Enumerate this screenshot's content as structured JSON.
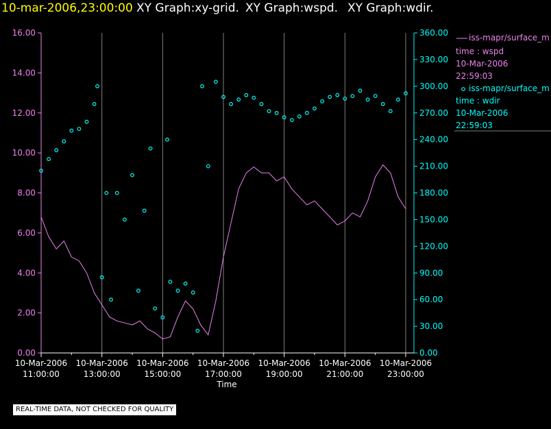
{
  "header": {
    "timestamp": "10-mar-2006,23:00:00",
    "graph1": "XY Graph:xy-grid.",
    "graph2": "XY Graph:wspd.",
    "graph3": "XY Graph:wdir."
  },
  "legend": {
    "wspd": {
      "name": "iss-mapr/surface_m",
      "line2": "time : wspd",
      "line3": "10-Mar-2006",
      "line4": "22:59:03"
    },
    "wdir": {
      "name": "iss-mapr/surface_m",
      "line2": "time : wdir",
      "line3": "10-Mar-2006",
      "line4": "22:59:03"
    }
  },
  "footer": {
    "quality_note": "REAL-TIME DATA, NOT CHECKED FOR QUALITY"
  },
  "colors": {
    "title": "#ffff00",
    "text": "#ffffff",
    "wspd": "#ee82ee",
    "wdir": "#00ffff",
    "grid": "#808080",
    "background": "#000000"
  },
  "chart_data": {
    "type": "line",
    "xlabel": "Time",
    "x_ticks": [
      {
        "date": "10-Mar-2006",
        "time": "11:00:00",
        "hour": 11
      },
      {
        "date": "10-Mar-2006",
        "time": "13:00:00",
        "hour": 13
      },
      {
        "date": "10-Mar-2006",
        "time": "15:00:00",
        "hour": 15
      },
      {
        "date": "10-Mar-2006",
        "time": "17:00:00",
        "hour": 17
      },
      {
        "date": "10-Mar-2006",
        "time": "19:00:00",
        "hour": 19
      },
      {
        "date": "10-Mar-2006",
        "time": "21:00:00",
        "hour": 21
      },
      {
        "date": "10-Mar-2006",
        "time": "23:00:00",
        "hour": 23
      }
    ],
    "xlim_hours": [
      11,
      23
    ],
    "y_left": {
      "ticks": [
        "0.00",
        "2.00",
        "4.00",
        "6.00",
        "8.00",
        "10.00",
        "12.00",
        "14.00",
        "16.00"
      ],
      "lim": [
        0,
        16
      ]
    },
    "y_right": {
      "ticks": [
        "0.00",
        "30.00",
        "60.00",
        "90.00",
        "120.00",
        "150.00",
        "180.00",
        "210.00",
        "240.00",
        "270.00",
        "300.00",
        "330.00",
        "360.00"
      ],
      "lim": [
        0,
        360
      ]
    },
    "grid": "vertical",
    "series": [
      {
        "key": "wspd",
        "style": "line",
        "axis": "left",
        "points": [
          [
            11.0,
            6.8
          ],
          [
            11.25,
            5.8
          ],
          [
            11.5,
            5.2
          ],
          [
            11.75,
            5.6
          ],
          [
            12.0,
            4.8
          ],
          [
            12.25,
            4.6
          ],
          [
            12.5,
            4.0
          ],
          [
            12.75,
            3.0
          ],
          [
            13.0,
            2.4
          ],
          [
            13.25,
            1.8
          ],
          [
            13.5,
            1.6
          ],
          [
            13.75,
            1.5
          ],
          [
            14.0,
            1.4
          ],
          [
            14.25,
            1.6
          ],
          [
            14.5,
            1.2
          ],
          [
            14.75,
            1.0
          ],
          [
            15.0,
            0.7
          ],
          [
            15.25,
            0.8
          ],
          [
            15.5,
            1.8
          ],
          [
            15.75,
            2.6
          ],
          [
            16.0,
            2.2
          ],
          [
            16.25,
            1.4
          ],
          [
            16.5,
            0.9
          ],
          [
            16.75,
            2.6
          ],
          [
            17.0,
            4.8
          ],
          [
            17.25,
            6.5
          ],
          [
            17.5,
            8.2
          ],
          [
            17.75,
            9.0
          ],
          [
            18.0,
            9.3
          ],
          [
            18.25,
            9.0
          ],
          [
            18.5,
            9.0
          ],
          [
            18.75,
            8.6
          ],
          [
            19.0,
            8.8
          ],
          [
            19.25,
            8.2
          ],
          [
            19.5,
            7.8
          ],
          [
            19.75,
            7.4
          ],
          [
            20.0,
            7.6
          ],
          [
            20.25,
            7.2
          ],
          [
            20.5,
            6.8
          ],
          [
            20.75,
            6.4
          ],
          [
            21.0,
            6.6
          ],
          [
            21.25,
            7.0
          ],
          [
            21.5,
            6.8
          ],
          [
            21.75,
            7.6
          ],
          [
            22.0,
            8.8
          ],
          [
            22.25,
            9.4
          ],
          [
            22.5,
            9.0
          ],
          [
            22.75,
            7.8
          ],
          [
            23.0,
            7.2
          ]
        ]
      },
      {
        "key": "wdir",
        "style": "scatter",
        "axis": "right",
        "points": [
          [
            11.0,
            205
          ],
          [
            11.25,
            218
          ],
          [
            11.5,
            228
          ],
          [
            11.75,
            238
          ],
          [
            12.0,
            250
          ],
          [
            12.25,
            252
          ],
          [
            12.5,
            260
          ],
          [
            12.75,
            280
          ],
          [
            12.85,
            300
          ],
          [
            13.0,
            85
          ],
          [
            13.15,
            180
          ],
          [
            13.3,
            60
          ],
          [
            13.5,
            180
          ],
          [
            13.75,
            150
          ],
          [
            14.0,
            200
          ],
          [
            14.2,
            70
          ],
          [
            14.4,
            160
          ],
          [
            14.6,
            230
          ],
          [
            14.75,
            50
          ],
          [
            15.0,
            40
          ],
          [
            15.15,
            240
          ],
          [
            15.25,
            80
          ],
          [
            15.5,
            70
          ],
          [
            15.75,
            78
          ],
          [
            16.0,
            68
          ],
          [
            16.15,
            25
          ],
          [
            16.3,
            300
          ],
          [
            16.5,
            210
          ],
          [
            16.75,
            305
          ],
          [
            17.0,
            288
          ],
          [
            17.25,
            280
          ],
          [
            17.5,
            285
          ],
          [
            17.75,
            290
          ],
          [
            18.0,
            287
          ],
          [
            18.25,
            280
          ],
          [
            18.5,
            272
          ],
          [
            18.75,
            270
          ],
          [
            19.0,
            265
          ],
          [
            19.25,
            262
          ],
          [
            19.5,
            266
          ],
          [
            19.75,
            270
          ],
          [
            20.0,
            275
          ],
          [
            20.25,
            283
          ],
          [
            20.5,
            288
          ],
          [
            20.75,
            290
          ],
          [
            21.0,
            286
          ],
          [
            21.25,
            289
          ],
          [
            21.5,
            295
          ],
          [
            21.75,
            285
          ],
          [
            22.0,
            289
          ],
          [
            22.25,
            280
          ],
          [
            22.5,
            272
          ],
          [
            22.75,
            285
          ],
          [
            23.0,
            292
          ]
        ]
      }
    ]
  }
}
